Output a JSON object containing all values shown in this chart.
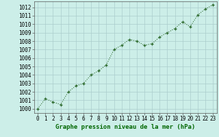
{
  "x": [
    0,
    1,
    2,
    3,
    4,
    5,
    6,
    7,
    8,
    9,
    10,
    11,
    12,
    13,
    14,
    15,
    16,
    17,
    18,
    19,
    20,
    21,
    22,
    23
  ],
  "y": [
    1000.0,
    1001.2,
    1000.8,
    1000.5,
    1002.0,
    1002.7,
    1003.0,
    1004.0,
    1004.5,
    1005.2,
    1007.0,
    1007.5,
    1008.2,
    1008.0,
    1007.5,
    1007.7,
    1008.5,
    1009.0,
    1009.5,
    1010.3,
    1009.7,
    1011.1,
    1011.8,
    1012.3
  ],
  "line_color": "#2d6a2d",
  "marker_color": "#2d6a2d",
  "bg_color": "#cceee8",
  "grid_color": "#aacccc",
  "xlabel": "Graphe pression niveau de la mer (hPa)",
  "xlabel_color": "#006600",
  "ylabel_ticks": [
    1000,
    1001,
    1002,
    1003,
    1004,
    1005,
    1006,
    1007,
    1008,
    1009,
    1010,
    1011,
    1012
  ],
  "ylim": [
    999.5,
    1012.7
  ],
  "xlim": [
    -0.5,
    23.5
  ]
}
